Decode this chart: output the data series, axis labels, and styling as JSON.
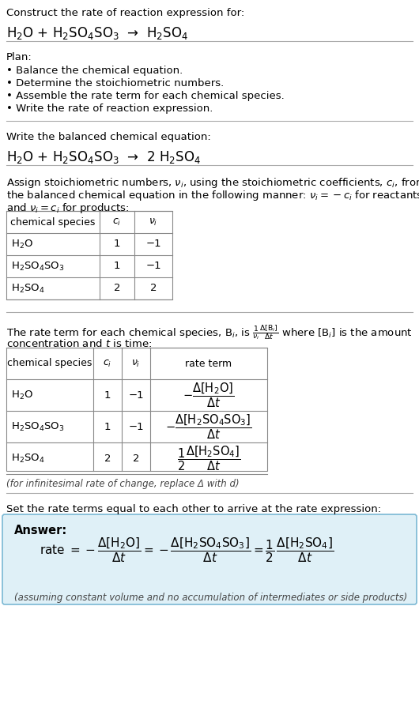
{
  "bg_color": "#ffffff",
  "answer_bg": "#dff0f7",
  "answer_border": "#7ab8d4",
  "line_color": "#aaaaaa",
  "table_line_color": "#888888",
  "section1_title": "Construct the rate of reaction expression for:",
  "section1_eq": "H$_2$O + H$_2$SO$_4$SO$_3$  →  H$_2$SO$_4$",
  "plan_title": "Plan:",
  "plan_items": [
    "• Balance the chemical equation.",
    "• Determine the stoichiometric numbers.",
    "• Assemble the rate term for each chemical species.",
    "• Write the rate of reaction expression."
  ],
  "balanced_title": "Write the balanced chemical equation:",
  "balanced_eq": "H$_2$O + H$_2$SO$_4$SO$_3$  →  2 H$_2$SO$_4$",
  "assign_text1": "Assign stoichiometric numbers, $\\nu_i$, using the stoichiometric coefficients, $c_i$, from",
  "assign_text2": "the balanced chemical equation in the following manner: $\\nu_i = -c_i$ for reactants",
  "assign_text3": "and $\\nu_i = c_i$ for products:",
  "table1_headers": [
    "chemical species",
    "$c_i$",
    "$\\nu_i$"
  ],
  "table1_rows": [
    [
      "H$_2$O",
      "1",
      "−1"
    ],
    [
      "H$_2$SO$_4$SO$_3$",
      "1",
      "−1"
    ],
    [
      "H$_2$SO$_4$",
      "2",
      "2"
    ]
  ],
  "rate_text1": "The rate term for each chemical species, B$_i$, is $\\frac{1}{\\nu_i}\\frac{\\Delta[\\mathrm{B}_i]}{\\Delta t}$ where [B$_i$] is the amount",
  "rate_text2": "concentration and $t$ is time:",
  "table2_headers": [
    "chemical species",
    "$c_i$",
    "$\\nu_i$",
    "rate term"
  ],
  "table2_rows": [
    [
      "H$_2$O",
      "1",
      "−1",
      "$-\\dfrac{\\Delta[\\mathrm{H_2O}]}{\\Delta t}$"
    ],
    [
      "H$_2$SO$_4$SO$_3$",
      "1",
      "−1",
      "$-\\dfrac{\\Delta[\\mathrm{H_2SO_4SO_3}]}{\\Delta t}$"
    ],
    [
      "H$_2$SO$_4$",
      "2",
      "2",
      "$\\dfrac{1}{2}\\dfrac{\\Delta[\\mathrm{H_2SO_4}]}{\\Delta t}$"
    ]
  ],
  "infinitesimal_note": "(for infinitesimal rate of change, replace Δ with d)",
  "set_equal_text": "Set the rate terms equal to each other to arrive at the rate expression:",
  "answer_label": "Answer:",
  "answer_eq": "rate $= -\\dfrac{\\Delta[\\mathrm{H_2O}]}{\\Delta t} = -\\dfrac{\\Delta[\\mathrm{H_2SO_4SO_3}]}{\\Delta t} = \\dfrac{1}{2}\\,\\dfrac{\\Delta[\\mathrm{H_2SO_4}]}{\\Delta t}$",
  "answer_note": "(assuming constant volume and no accumulation of intermediates or side products)"
}
